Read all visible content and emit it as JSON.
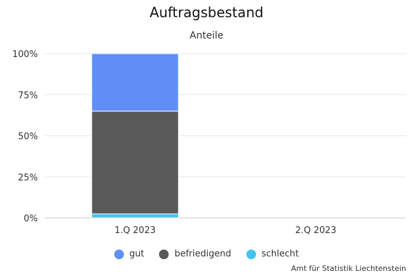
{
  "chart_data": {
    "type": "bar",
    "stacked": true,
    "title": "Auftragsbestand",
    "subtitle": "Anteile",
    "categories": [
      "1.Q 2023",
      "2.Q 2023"
    ],
    "series": [
      {
        "name": "schlecht",
        "color": "#45c3ef",
        "values": [
          2.5,
          null
        ]
      },
      {
        "name": "befriedigend",
        "color": "#595959",
        "values": [
          62.5,
          null
        ]
      },
      {
        "name": "gut",
        "color": "#5f8ff7",
        "values": [
          35,
          null
        ]
      }
    ],
    "ylim": [
      0,
      100
    ],
    "yticks": [
      "0%",
      "25%",
      "50%",
      "75%",
      "100%"
    ],
    "grid": true,
    "legend_position": "bottom",
    "legend": [
      {
        "label": "gut",
        "color": "#5f8ff7"
      },
      {
        "label": "befriedigend",
        "color": "#595959"
      },
      {
        "label": "schlecht",
        "color": "#45c3ef"
      }
    ],
    "credit": "Amt für Statistik Liechtenstein"
  }
}
